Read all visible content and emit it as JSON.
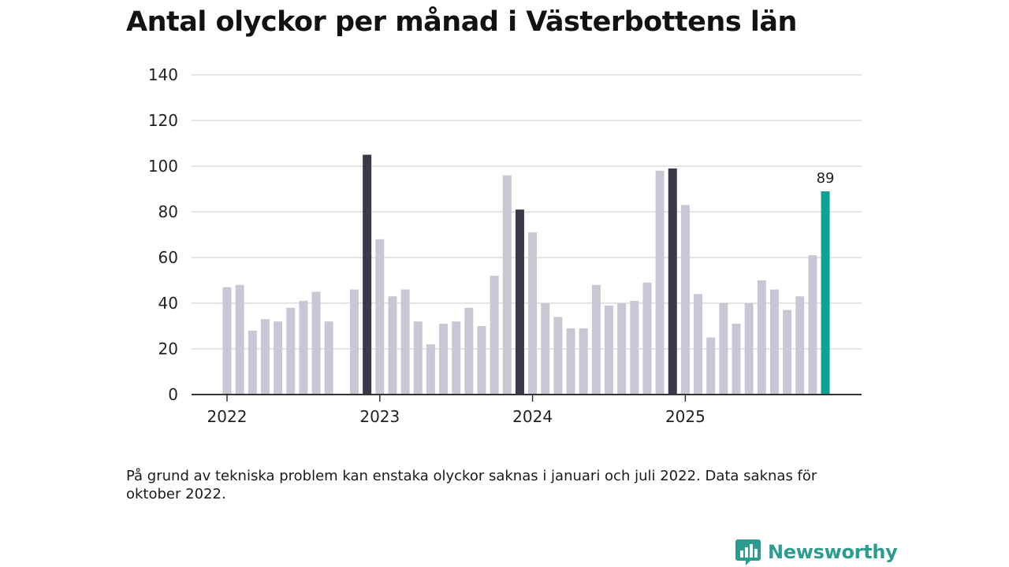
{
  "header": {
    "title": "Antal olyckor per månad i Västerbottens län"
  },
  "footer": {
    "note": "På grund av tekniska problem kan enstaka olyckor saknas i januari och juli 2022. Data saknas för oktober 2022.",
    "brand": "Newsworthy"
  },
  "colors": {
    "bar_default": "#c9c7d3",
    "bar_december": "#3b3a4a",
    "bar_latest": "#10a195",
    "grid": "#dcdcdc",
    "axis": "#333333",
    "brand": "#2a9d8f"
  },
  "chart_data": {
    "type": "bar",
    "title": "Antal olyckor per månad i Västerbottens län",
    "xlabel": "",
    "ylabel": "",
    "ylim": [
      0,
      140
    ],
    "yticks": [
      0,
      20,
      40,
      60,
      80,
      100,
      120,
      140
    ],
    "xtick_labels": [
      {
        "label": "2022",
        "index": 0
      },
      {
        "label": "2023",
        "index": 12
      },
      {
        "label": "2024",
        "index": 24
      },
      {
        "label": "2025",
        "index": 36
      }
    ],
    "categories": [
      "2022-01",
      "2022-02",
      "2022-03",
      "2022-04",
      "2022-05",
      "2022-06",
      "2022-07",
      "2022-08",
      "2022-09",
      "2022-10",
      "2022-11",
      "2022-12",
      "2023-01",
      "2023-02",
      "2023-03",
      "2023-04",
      "2023-05",
      "2023-06",
      "2023-07",
      "2023-08",
      "2023-09",
      "2023-10",
      "2023-11",
      "2023-12",
      "2024-01",
      "2024-02",
      "2024-03",
      "2024-04",
      "2024-05",
      "2024-06",
      "2024-07",
      "2024-08",
      "2024-09",
      "2024-10",
      "2024-11",
      "2024-12",
      "2025-01",
      "2025-02",
      "2025-03",
      "2025-04",
      "2025-05",
      "2025-06",
      "2025-07",
      "2025-08",
      "2025-09",
      "2025-10",
      "2025-11",
      "2025-12"
    ],
    "values": [
      47,
      48,
      28,
      33,
      32,
      38,
      41,
      45,
      32,
      null,
      46,
      105,
      68,
      43,
      46,
      32,
      22,
      31,
      32,
      38,
      30,
      52,
      96,
      81,
      71,
      40,
      34,
      29,
      29,
      48,
      39,
      40,
      41,
      49,
      98,
      99,
      83,
      44,
      25,
      40,
      31,
      40,
      50,
      46,
      37,
      43,
      61,
      89
    ],
    "highlight": {
      "december_indices": [
        11,
        23,
        35
      ],
      "latest_index": 47
    },
    "annotations": [
      {
        "index": 47,
        "text": "89"
      }
    ]
  }
}
